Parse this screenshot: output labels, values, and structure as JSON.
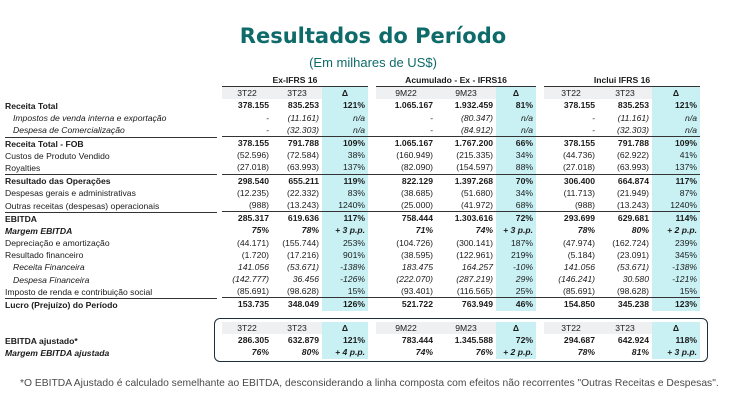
{
  "title": "Resultados do Período",
  "subtitle": "(Em milhares de US$)",
  "groups": [
    "Ex-IFRS 16",
    "Acumulado - Ex - IFRS16",
    "Inclui IFRS 16"
  ],
  "subheaders": [
    [
      "3T22",
      "3T23",
      "Δ"
    ],
    [
      "9M22",
      "9M23",
      "Δ"
    ],
    [
      "3T22",
      "3T23",
      "Δ"
    ]
  ],
  "rows": [
    {
      "label": "Receita Total",
      "style": "b",
      "vals": [
        "378.155",
        "835.253",
        "121%",
        "1.065.167",
        "1.932.459",
        "81%",
        "378.155",
        "835.253",
        "121%"
      ]
    },
    {
      "label": "Impostos de venda interna e exportação",
      "style": "i ind",
      "vals": [
        "-",
        "(11.161)",
        "n/a",
        "-",
        "(80.347)",
        "n/a",
        "-",
        "(11.161)",
        "n/a"
      ]
    },
    {
      "label": "Despesa de Comercialização",
      "style": "i ind",
      "vals": [
        "-",
        "(32.303)",
        "n/a",
        "-",
        "(84.912)",
        "n/a",
        "-",
        "(32.303)",
        "n/a"
      ]
    },
    {
      "label": "Receita Total - FOB",
      "style": "b sep",
      "vals": [
        "378.155",
        "791.788",
        "109%",
        "1.065.167",
        "1.767.200",
        "66%",
        "378.155",
        "791.788",
        "109%"
      ]
    },
    {
      "label": "Custos de Produto Vendido",
      "style": "",
      "vals": [
        "(52.596)",
        "(72.584)",
        "38%",
        "(160.949)",
        "(215.335)",
        "34%",
        "(44.736)",
        "(62.922)",
        "41%"
      ]
    },
    {
      "label": "Royalties",
      "style": "",
      "vals": [
        "(27.018)",
        "(63.993)",
        "137%",
        "(82.090)",
        "(154.597)",
        "88%",
        "(27.018)",
        "(63.993)",
        "137%"
      ]
    },
    {
      "label": "Resultado das Operações",
      "style": "b sep",
      "vals": [
        "298.540",
        "655.211",
        "119%",
        "822.129",
        "1.397.268",
        "70%",
        "306.400",
        "664.874",
        "117%"
      ]
    },
    {
      "label": "Despesas gerais e administrativas",
      "style": "",
      "vals": [
        "(12.235)",
        "(22.332)",
        "83%",
        "(38.685)",
        "(51.680)",
        "34%",
        "(11.713)",
        "(21.949)",
        "87%"
      ]
    },
    {
      "label": "Outras receitas (despesas) operacionais",
      "style": "",
      "vals": [
        "(988)",
        "(13.243)",
        "1240%",
        "(25.000)",
        "(41.972)",
        "68%",
        "(988)",
        "(13.243)",
        "1240%"
      ]
    },
    {
      "label": "EBITDA",
      "style": "b sep",
      "vals": [
        "285.317",
        "619.636",
        "117%",
        "758.444",
        "1.303.616",
        "72%",
        "293.699",
        "629.681",
        "114%"
      ]
    },
    {
      "label": "Margem EBITDA",
      "style": "b i",
      "vals": [
        "75%",
        "78%",
        "+ 3 p.p.",
        "71%",
        "74%",
        "+ 3 p.p.",
        "78%",
        "80%",
        "+ 2 p.p."
      ]
    },
    {
      "label": "Depreciação e amortização",
      "style": "",
      "vals": [
        "(44.171)",
        "(155.744)",
        "253%",
        "(104.726)",
        "(300.141)",
        "187%",
        "(47.974)",
        "(162.724)",
        "239%"
      ]
    },
    {
      "label": "Resultado financeiro",
      "style": "",
      "vals": [
        "(1.720)",
        "(17.216)",
        "901%",
        "(38.595)",
        "(122.961)",
        "219%",
        "(5.184)",
        "(23.091)",
        "345%"
      ]
    },
    {
      "label": "Receita Financeira",
      "style": "i ind",
      "vals": [
        "141.056",
        "(53.671)",
        "-138%",
        "183.475",
        "164.257",
        "-10%",
        "141.056",
        "(53.671)",
        "-138%"
      ]
    },
    {
      "label": "Despesa Financeira",
      "style": "i ind",
      "vals": [
        "(142.777)",
        "36.456",
        "-126%",
        "(222.070)",
        "(287.219)",
        "29%",
        "(146.241)",
        "30.580",
        "-121%"
      ]
    },
    {
      "label": "Imposto de renda e contribuição social",
      "style": "",
      "vals": [
        "(85.691)",
        "(98.628)",
        "15%",
        "(93.401)",
        "(116.565)",
        "25%",
        "(85.691)",
        "(98.628)",
        "15%"
      ]
    },
    {
      "label": "Lucro (Prejuízo) do Período",
      "style": "b sep",
      "vals": [
        "153.735",
        "348.049",
        "126%",
        "521.722",
        "763.949",
        "46%",
        "154.850",
        "345.238",
        "123%"
      ]
    }
  ],
  "adjusted_headers": [
    [
      "3T22",
      "3T23",
      "Δ"
    ],
    [
      "9M22",
      "9M23",
      "Δ"
    ],
    [
      "3T22",
      "3T23",
      "Δ"
    ]
  ],
  "adjusted_rows": [
    {
      "label": "EBITDA ajustado*",
      "style": "b",
      "vals": [
        "286.305",
        "632.879",
        "121%",
        "783.444",
        "1.345.588",
        "72%",
        "294.687",
        "642.924",
        "118%"
      ]
    },
    {
      "label": "Margem EBITDA ajustada",
      "style": "b i",
      "vals": [
        "76%",
        "80%",
        "+ 4 p.p.",
        "74%",
        "76%",
        "+ 2 p.p.",
        "78%",
        "81%",
        "+ 3 p.p."
      ]
    }
  ],
  "footnote": "*O EBITDA Ajustado é calculado semelhante ao EBITDA, desconsiderando a linha composta com efeitos não recorrentes \"Outras Receitas e Despesas\"."
}
